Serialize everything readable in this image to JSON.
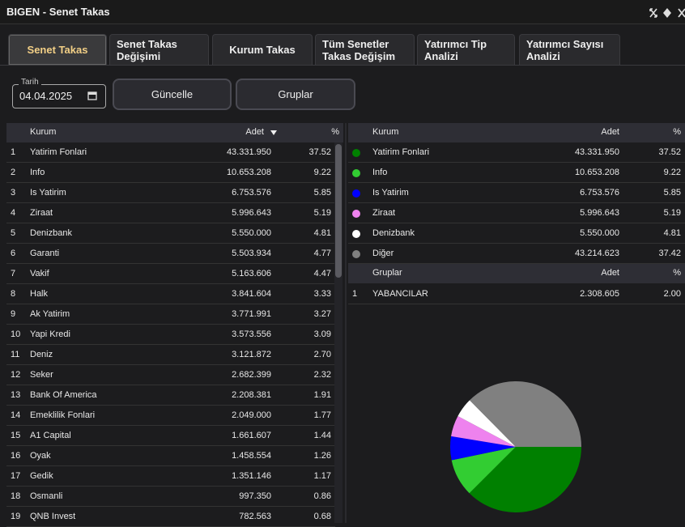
{
  "window": {
    "title": "BIGEN - Senet Takas"
  },
  "tabs": [
    "Senet Takas",
    "Senet Takas\nDeğişimi",
    "Kurum Takas",
    "Tüm Senetler\nTakas Değişim",
    "Yatırımcı Tip\nAnalizi",
    "Yatırımcı Sayısı\nAnalizi"
  ],
  "controls": {
    "date_label": "Tarih",
    "date": "04.04.2025",
    "buttons": [
      "Güncelle",
      "Gruplar"
    ]
  },
  "left_table": {
    "columns": [
      "Kurum",
      "Adet",
      "%"
    ],
    "rows": [
      [
        "1",
        "Yatirim Fonlari",
        "43.331.950",
        "37.52"
      ],
      [
        "2",
        "Info",
        "10.653.208",
        "9.22"
      ],
      [
        "3",
        "Is Yatirim",
        "6.753.576",
        "5.85"
      ],
      [
        "4",
        "Ziraat",
        "5.996.643",
        "5.19"
      ],
      [
        "5",
        "Denizbank",
        "5.550.000",
        "4.81"
      ],
      [
        "6",
        "Garanti",
        "5.503.934",
        "4.77"
      ],
      [
        "7",
        "Vakif",
        "5.163.606",
        "4.47"
      ],
      [
        "8",
        "Halk",
        "3.841.604",
        "3.33"
      ],
      [
        "9",
        "Ak Yatirim",
        "3.771.991",
        "3.27"
      ],
      [
        "10",
        "Yapi Kredi",
        "3.573.556",
        "3.09"
      ],
      [
        "11",
        "Deniz",
        "3.121.872",
        "2.70"
      ],
      [
        "12",
        "Seker",
        "2.682.399",
        "2.32"
      ],
      [
        "13",
        "Bank Of America",
        "2.208.381",
        "1.91"
      ],
      [
        "14",
        "Emeklilik Fonlari",
        "2.049.000",
        "1.77"
      ],
      [
        "15",
        "A1 Capital",
        "1.661.607",
        "1.44"
      ],
      [
        "16",
        "Oyak",
        "1.458.554",
        "1.26"
      ],
      [
        "17",
        "Gedik",
        "1.351.146",
        "1.17"
      ],
      [
        "18",
        "Osmanli",
        "997.350",
        "0.86"
      ],
      [
        "19",
        "QNB Invest",
        "782.563",
        "0.68"
      ]
    ]
  },
  "right_table": {
    "columns": [
      "Kurum",
      "Adet",
      "%"
    ],
    "rows": [
      {
        "name": "Yatirim Fonlari",
        "adet": "43.331.950",
        "pct": 37.52,
        "color": "#008000"
      },
      {
        "name": "Info",
        "adet": "10.653.208",
        "pct": 9.22,
        "color": "#32cd32"
      },
      {
        "name": "Is Yatirim",
        "adet": "6.753.576",
        "pct": 5.85,
        "color": "#0000ff"
      },
      {
        "name": "Ziraat",
        "adet": "5.996.643",
        "pct": 5.19,
        "color": "#ee82ee"
      },
      {
        "name": "Denizbank",
        "adet": "5.550.000",
        "pct": 4.81,
        "color": "#ffffff"
      },
      {
        "name": "Diğer",
        "adet": "43.214.623",
        "pct": 37.42,
        "color": "#808080"
      }
    ]
  },
  "groups_table": {
    "columns": [
      "Gruplar",
      "Adet",
      "%"
    ],
    "rows": [
      [
        "1",
        "YABANCILAR",
        "2.308.605",
        "2.00"
      ]
    ]
  }
}
